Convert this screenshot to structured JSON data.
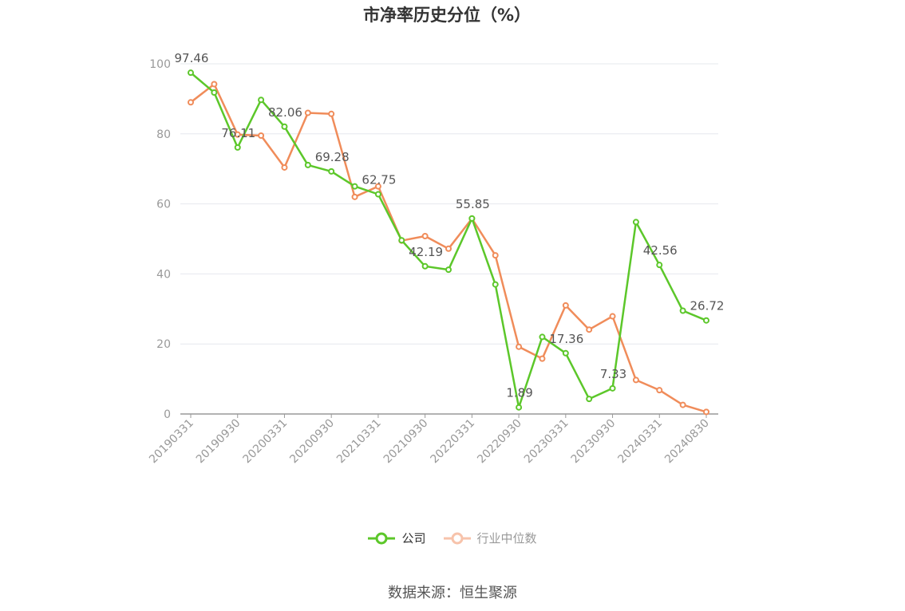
{
  "title": "市净率历史分位（%）",
  "source": "数据来源：恒生聚源",
  "chart_data": {
    "type": "line",
    "title": "市净率历史分位（%）",
    "ylim": [
      0,
      100
    ],
    "yticks": [
      0,
      20,
      40,
      60,
      80,
      100
    ],
    "grid": true,
    "legend_placement": "bottom",
    "x_tick_labels": [
      "20190331",
      "20190930",
      "20200331",
      "20200930",
      "20210331",
      "20210930",
      "20220331",
      "20220930",
      "20230331",
      "20230930",
      "20240331",
      "20240830"
    ],
    "x": [
      "20190331",
      "20190630",
      "20190930",
      "20191231",
      "20200331",
      "20200630",
      "20200930",
      "20201231",
      "20210331",
      "20210630",
      "20210930",
      "20211231",
      "20220331",
      "20220630",
      "20220930",
      "20221231",
      "20230331",
      "20230630",
      "20230930",
      "20231231",
      "20240331",
      "20240630",
      "20240830"
    ],
    "series": [
      {
        "name": "公司",
        "color": "#5cc72a",
        "values": [
          97.46,
          91.8,
          76.11,
          89.7,
          82.06,
          71.1,
          69.28,
          65.0,
          62.75,
          49.6,
          42.19,
          41.2,
          55.85,
          37.0,
          1.89,
          22.0,
          17.36,
          4.3,
          7.33,
          54.8,
          42.56,
          29.5,
          26.72
        ],
        "labels": {
          "0": "97.46",
          "2": "76.11",
          "4": "82.06",
          "6": "69.28",
          "8": "62.75",
          "10": "42.19",
          "12": "55.85",
          "14": "1.89",
          "16": "17.36",
          "18": "7.33",
          "20": "42.56",
          "22": "26.72"
        }
      },
      {
        "name": "行业中位数",
        "color": "#f08c5a",
        "values": [
          89.0,
          94.2,
          79.8,
          79.5,
          70.4,
          86.0,
          85.7,
          62.0,
          65.0,
          49.5,
          50.8,
          47.2,
          55.8,
          45.3,
          19.2,
          15.8,
          31.0,
          24.1,
          27.9,
          9.7,
          6.8,
          2.6,
          0.6
        ]
      }
    ]
  },
  "legend": {
    "company": "公司",
    "industry": "行业中位数",
    "company_icon": "circle-line-icon",
    "industry_icon": "circle-line-icon"
  }
}
